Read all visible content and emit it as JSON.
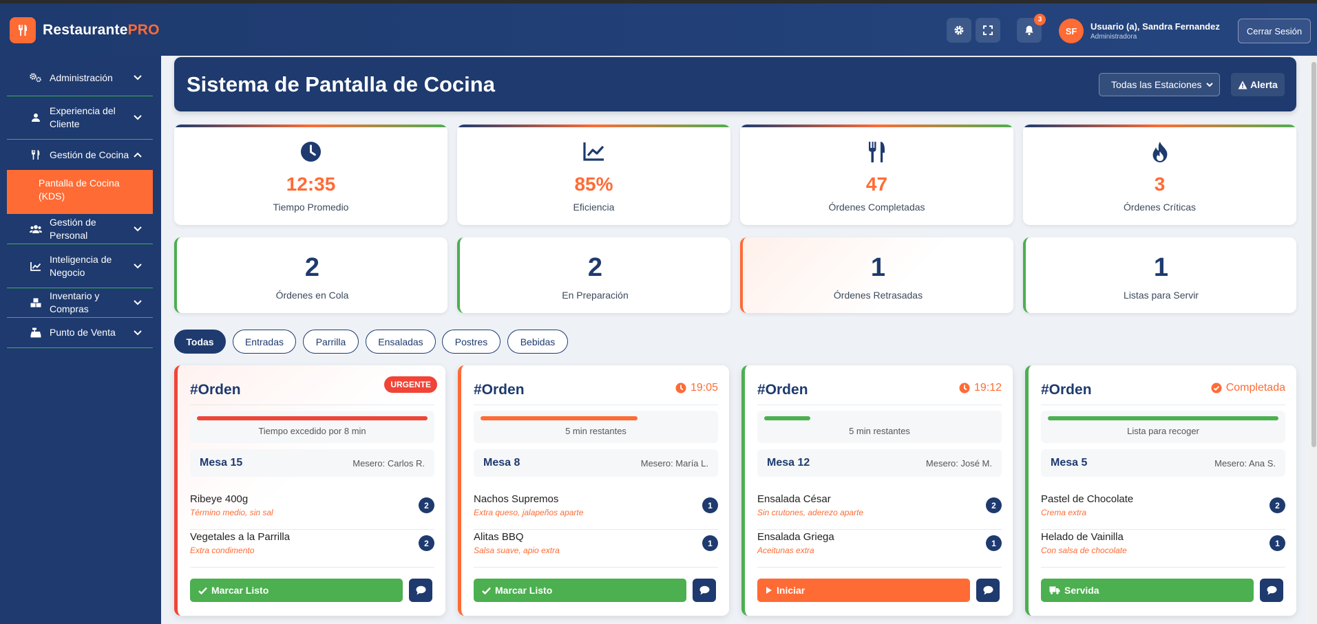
{
  "app": {
    "brand_main": "Restaurante",
    "brand_accent": "PRO"
  },
  "topbar": {
    "notification_count": "3",
    "user_initials": "SF",
    "user_name": "Usuario (a), Sandra Fernandez",
    "user_role": "Administradora",
    "logout_label": "Cerrar Sesión"
  },
  "sidebar": {
    "items": [
      {
        "label": "Administración",
        "icon": "users-cog-icon"
      },
      {
        "label": "Experiencia del Cliente",
        "icon": "users-icon"
      },
      {
        "label": "Gestión de Cocina",
        "icon": "utensils-icon"
      },
      {
        "label": "Gestión de Personal",
        "icon": "users-icon"
      },
      {
        "label": "Inteligencia de Negocio",
        "icon": "chart-line-icon"
      },
      {
        "label": "Inventario y Compras",
        "icon": "boxes-icon"
      },
      {
        "label": "Punto de Venta",
        "icon": "cash-register-icon"
      }
    ],
    "active_sub": "Pantalla de Cocina (KDS)"
  },
  "header": {
    "title": "Sistema de Pantalla de Cocina",
    "station_select": "Todas las Estaciones",
    "alert_label": "Alerta"
  },
  "stats": [
    {
      "value": "12:35",
      "label": "Tiempo Promedio",
      "icon": "clock-icon"
    },
    {
      "value": "85%",
      "label": "Eficiencia",
      "icon": "chart-line-icon"
    },
    {
      "value": "47",
      "label": "Órdenes Completadas",
      "icon": "utensils-icon"
    },
    {
      "value": "3",
      "label": "Órdenes Críticas",
      "icon": "fire-icon"
    }
  ],
  "counts": [
    {
      "value": "2",
      "label": "Órdenes en Cola"
    },
    {
      "value": "2",
      "label": "En Preparación"
    },
    {
      "value": "1",
      "label": "Órdenes Retrasadas"
    },
    {
      "value": "1",
      "label": "Listas para Servir"
    }
  ],
  "filters": [
    "Todas",
    "Entradas",
    "Parrilla",
    "Ensaladas",
    "Postres",
    "Bebidas"
  ],
  "orders": [
    {
      "title": "#Orden",
      "status": "URGENTE",
      "progress": 1.0,
      "progress_color": "#f04437",
      "time_text": "Tiempo excedido por 8 min",
      "mesa": "Mesa 15",
      "mesero": "Mesero: Carlos R.",
      "items": [
        {
          "name": "Ribeye 400g",
          "note": "Término medio, sin sal",
          "qty": "2"
        },
        {
          "name": "Vegetales a la Parrilla",
          "note": "Extra condimento",
          "qty": "2"
        }
      ],
      "action": "Marcar Listo"
    },
    {
      "title": "#Orden",
      "status": "19:05",
      "progress": 0.68,
      "progress_color": "#ff6b35",
      "time_text": "5 min restantes",
      "mesa": "Mesa 8",
      "mesero": "Mesero: María L.",
      "items": [
        {
          "name": "Nachos Supremos",
          "note": "Extra queso, jalapeños aparte",
          "qty": "1"
        },
        {
          "name": "Alitas BBQ",
          "note": "Salsa suave, apio extra",
          "qty": "1"
        }
      ],
      "action": "Marcar Listo"
    },
    {
      "title": "#Orden",
      "status": "19:12",
      "progress": 0.2,
      "progress_color": "#4caf50",
      "time_text": "5 min restantes",
      "mesa": "Mesa 12",
      "mesero": "Mesero: José M.",
      "items": [
        {
          "name": "Ensalada César",
          "note": "Sin crutones, aderezo aparte",
          "qty": "2"
        },
        {
          "name": "Ensalada Griega",
          "note": "Aceitunas extra",
          "qty": "1"
        }
      ],
      "action": "Iniciar"
    },
    {
      "title": "#Orden",
      "status": "Completada",
      "progress": 1.0,
      "progress_color": "#4caf50",
      "time_text": "Lista para recoger",
      "mesa": "Mesa 5",
      "mesero": "Mesero: Ana S.",
      "items": [
        {
          "name": "Pastel de Chocolate",
          "note": "Crema extra",
          "qty": "2"
        },
        {
          "name": "Helado de Vainilla",
          "note": "Con salsa de chocolate",
          "qty": "1"
        }
      ],
      "action": "Servida"
    }
  ],
  "colors": {
    "navy": "#1e3a6e",
    "accent": "#ff6b35",
    "green": "#4caf50",
    "red": "#f04437"
  }
}
